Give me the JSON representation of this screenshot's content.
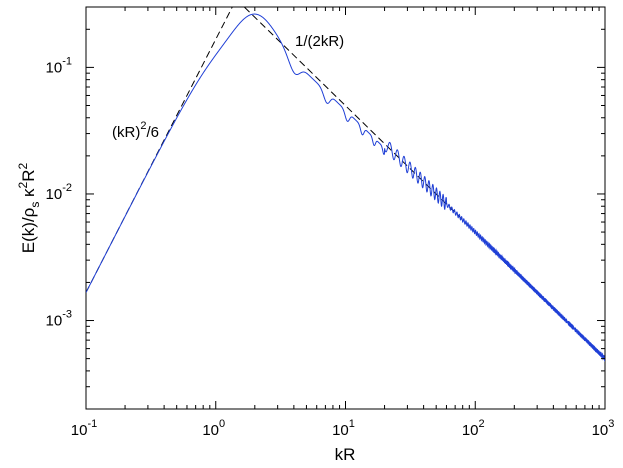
{
  "chart_data": {
    "type": "line",
    "xscale": "log",
    "yscale": "log",
    "xlim": [
      0.1,
      1000
    ],
    "ylim": [
      0.0002,
      0.3
    ],
    "grid": false,
    "xlabel": "kR",
    "ylabel": "E(k)/ρ_s κ^2 R^2",
    "x_ticks": [
      {
        "base": "10",
        "exp": "-1",
        "value": 0.1
      },
      {
        "base": "10",
        "exp": "0",
        "value": 1
      },
      {
        "base": "10",
        "exp": "1",
        "value": 10
      },
      {
        "base": "10",
        "exp": "2",
        "value": 100
      },
      {
        "base": "10",
        "exp": "3",
        "value": 1000
      }
    ],
    "y_ticks": [
      {
        "base": "10",
        "exp": "-3",
        "value": 0.001
      },
      {
        "base": "10",
        "exp": "-2",
        "value": 0.01
      },
      {
        "base": "10",
        "exp": "-1",
        "value": 0.1
      }
    ],
    "series": [
      {
        "style": "solid",
        "color": "#1f3fd6",
        "description_source": "spectrum curve",
        "peak": {
          "x": 2.1,
          "y": 0.28
        },
        "oscillation_dips": [
          4.4,
          7.6,
          10.8,
          14.0
        ],
        "tail_slope": -1
      },
      {
        "style": "dashed",
        "color": "#000000",
        "formula_low": "(kR)^2/6",
        "formula_high": "1/(2kR)",
        "crossover_x": 1.44
      }
    ],
    "annotations": [
      {
        "id": "low",
        "text_main": "(kR)",
        "text_sup": "2",
        "text_tail": "/6"
      },
      {
        "id": "high",
        "text": "1/(2kR)"
      }
    ]
  }
}
